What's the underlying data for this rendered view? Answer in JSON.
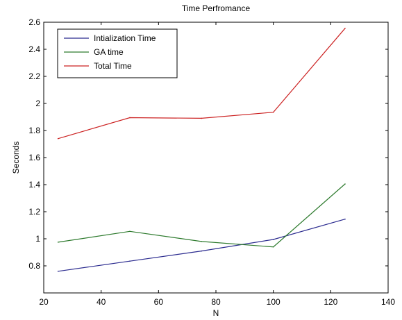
{
  "chart_data": {
    "type": "line",
    "title": "Time Perfromance",
    "xlabel": "N",
    "ylabel": "Seconds",
    "xlim": [
      20,
      140
    ],
    "ylim": [
      0.6,
      2.6
    ],
    "x_ticks": [
      20,
      40,
      60,
      80,
      100,
      120,
      140
    ],
    "y_ticks": [
      0.8,
      1,
      1.2,
      1.4,
      1.6,
      1.8,
      2,
      2.2,
      2.4,
      2.6
    ],
    "grid": false,
    "legend_position": "top-left",
    "series": [
      {
        "name": "Intialization Time",
        "color": "#2b2b8f",
        "x": [
          25,
          50,
          75,
          100,
          125
        ],
        "y": [
          0.76,
          0.835,
          0.91,
          0.995,
          1.145
        ]
      },
      {
        "name": "GA time",
        "color": "#2d7a2d",
        "x": [
          25,
          50,
          75,
          100,
          125
        ],
        "y": [
          0.975,
          1.055,
          0.98,
          0.94,
          1.405
        ]
      },
      {
        "name": "Total Time",
        "color": "#cc2222",
        "x": [
          25,
          50,
          75,
          100,
          125
        ],
        "y": [
          1.74,
          1.895,
          1.89,
          1.935,
          2.555
        ]
      }
    ]
  }
}
